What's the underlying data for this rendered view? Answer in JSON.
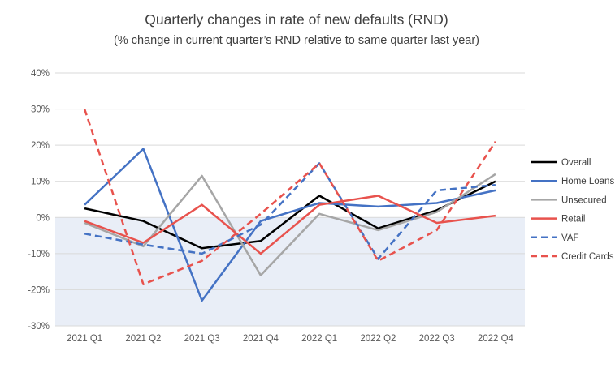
{
  "chart_data": {
    "type": "line",
    "title": "Quarterly changes in rate of new defaults (RND)",
    "subtitle": "(% change in current quarter’s RND relative to same quarter last year)",
    "categories": [
      "2021 Q1",
      "2021 Q2",
      "2021 Q3",
      "2021 Q4",
      "2022 Q1",
      "2022 Q2",
      "2022 Q3",
      "2022 Q4"
    ],
    "series": [
      {
        "name": "Overall",
        "color": "#000000",
        "dash": false,
        "values": [
          2.5,
          -1,
          -8.5,
          -6.5,
          6,
          -3,
          2,
          10
        ]
      },
      {
        "name": "Home Loans",
        "color": "#4472c4",
        "dash": false,
        "values": [
          3.5,
          19,
          -23,
          -1,
          4,
          3,
          4,
          7.5
        ]
      },
      {
        "name": "Unsecured",
        "color": "#a6a6a6",
        "dash": false,
        "values": [
          -1.5,
          -8,
          11.5,
          -16,
          1,
          -3.5,
          1.5,
          12
        ]
      },
      {
        "name": "Retail",
        "color": "#e8524d",
        "dash": false,
        "values": [
          -1,
          -7,
          3.5,
          -10,
          3.5,
          6,
          -1.5,
          0.5
        ]
      },
      {
        "name": "VAF",
        "color": "#4472c4",
        "dash": true,
        "values": [
          -4.5,
          -7.5,
          -10,
          -2,
          15,
          -11.5,
          7.5,
          9
        ]
      },
      {
        "name": "Credit Cards",
        "color": "#e8524d",
        "dash": true,
        "values": [
          30,
          -18.5,
          -12,
          1,
          15,
          -12,
          -3.5,
          21
        ]
      }
    ],
    "ylim": [
      -30,
      40
    ],
    "yticks": [
      40,
      30,
      20,
      10,
      0,
      -10,
      -20,
      -30
    ],
    "ytick_suffix": "%",
    "grid": true,
    "legend_position": "right",
    "shaded_region": {
      "from": 0,
      "to": -30,
      "color": "#e9eef7"
    },
    "gridline_color": "#d9d9d9",
    "axis_label_color": "#595959",
    "legend_label_color": "#404040"
  }
}
